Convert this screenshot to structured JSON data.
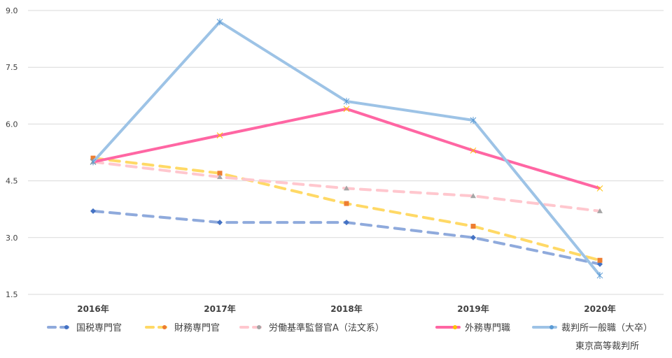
{
  "chart_data": {
    "type": "line",
    "categories": [
      "2016年",
      "2017年",
      "2018年",
      "2019年",
      "2020年"
    ],
    "ylim": [
      1.5,
      9.0
    ],
    "yticks": [
      "1.5",
      "3.0",
      "4.5",
      "6.0",
      "7.5",
      "9.0"
    ],
    "ytick_values": [
      1.5,
      3.0,
      4.5,
      6.0,
      7.5,
      9.0
    ],
    "grid": true,
    "legend_position": "bottom",
    "series": [
      {
        "name": "国税専門官",
        "values": [
          3.7,
          3.4,
          3.4,
          3.0,
          2.3
        ],
        "color": "#8faadc",
        "marker_color": "#4472c4",
        "dash": true,
        "marker": "diamond"
      },
      {
        "name": "財務専門官",
        "values": [
          5.1,
          4.7,
          3.9,
          3.3,
          2.4
        ],
        "color": "#ffd966",
        "marker_color": "#ed7d31",
        "dash": true,
        "marker": "square"
      },
      {
        "name": "労働基準監督官A（法文系）",
        "values": [
          5.0,
          4.6,
          4.3,
          4.1,
          3.7
        ],
        "color": "#ffc7ce",
        "marker_color": "#a5a5a5",
        "dash": true,
        "marker": "triangle"
      },
      {
        "name": "外務専門職",
        "values": [
          5.0,
          5.7,
          6.4,
          5.3,
          4.3
        ],
        "color": "#ff66a3",
        "marker_color": "#ffc000",
        "dash": false,
        "marker": "x"
      },
      {
        "name": "裁判所一般職（大卒）",
        "name_line2": "東京高等裁判所",
        "values": [
          5.0,
          8.7,
          6.6,
          6.1,
          2.0
        ],
        "color": "#9dc3e6",
        "marker_color": "#5b9bd5",
        "dash": false,
        "marker": "star"
      }
    ]
  }
}
